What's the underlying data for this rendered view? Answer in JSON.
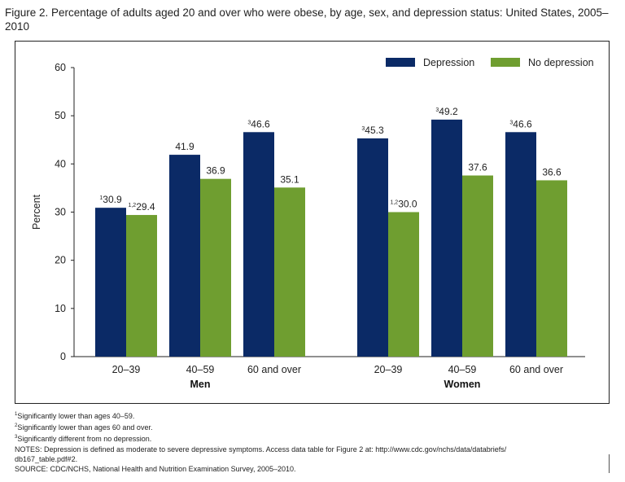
{
  "figure": {
    "title": "Figure 2. Percentage of adults aged 20 and over who were obese, by age, sex, and depression status: United States, 2005–2010"
  },
  "chart_data": {
    "type": "bar",
    "ylabel": "Percent",
    "xlabel": "",
    "ylim": [
      0,
      60
    ],
    "yticks": [
      0,
      10,
      20,
      30,
      40,
      50,
      60
    ],
    "grid": false,
    "legend_position": "top-right",
    "groups": [
      {
        "label": "Men",
        "categories": [
          "20–39",
          "40–59",
          "60 and over"
        ]
      },
      {
        "label": "Women",
        "categories": [
          "20–39",
          "40–59",
          "60 and over"
        ]
      }
    ],
    "series": [
      {
        "name": "Depression",
        "color": "#0b2a66",
        "values": [
          30.9,
          41.9,
          46.6,
          45.3,
          49.2,
          46.6
        ],
        "markers": [
          "1",
          "",
          "3",
          "3",
          "3",
          "3"
        ]
      },
      {
        "name": "No depression",
        "color": "#6f9e30",
        "values": [
          29.4,
          36.9,
          35.1,
          30.0,
          37.6,
          36.6
        ],
        "markers": [
          "1,2",
          "",
          "",
          "1,2",
          "",
          ""
        ]
      }
    ]
  },
  "notes": {
    "footnote1_marker": "1",
    "footnote1": "Significantly lower than ages 40–59.",
    "footnote2_marker": "2",
    "footnote2": "Significantly lower than ages 60 and over.",
    "footnote3_marker": "3",
    "footnote3": "Significantly different from no depression.",
    "notes_line1": "NOTES: Depression is defined as moderate to severe depressive symptoms. Access data table for Figure 2 at: http://www.cdc.gov/nchs/data/databriefs/",
    "notes_line2": "db167_table.pdf#2.",
    "source": "SOURCE: CDC/NCHS, National Health and Nutrition Examination Survey, 2005–2010."
  }
}
